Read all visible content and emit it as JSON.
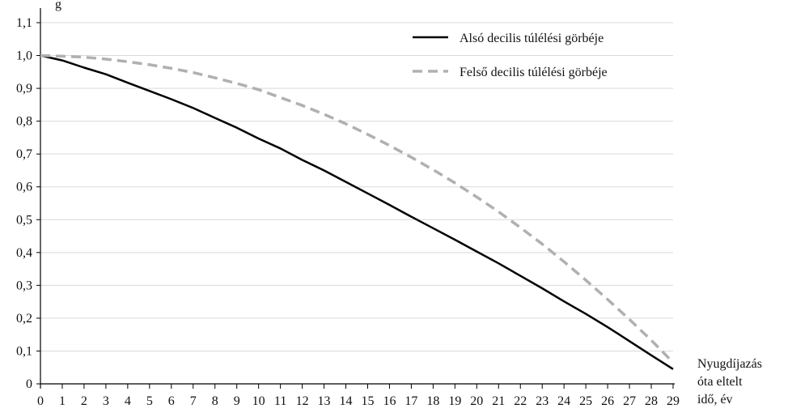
{
  "chart_data": {
    "type": "line",
    "ylabel_fragment": "g",
    "xlabel_lines": [
      "Nyugdíjazás",
      "óta eltelt",
      "idő, év"
    ],
    "ylim": [
      0,
      1.1
    ],
    "yticks": [
      "0",
      "0,1",
      "0,2",
      "0,3",
      "0,4",
      "0,5",
      "0,6",
      "0,7",
      "0,8",
      "0,9",
      "1,0",
      "1,1"
    ],
    "x": [
      0,
      1,
      2,
      3,
      4,
      5,
      6,
      7,
      8,
      9,
      10,
      11,
      12,
      13,
      14,
      15,
      16,
      17,
      18,
      19,
      20,
      21,
      22,
      23,
      24,
      25,
      26,
      27,
      28,
      29
    ],
    "grid": "horizontal",
    "legend_position": "top-right",
    "series": [
      {
        "name": "Alsó decilis túlélési görbéje",
        "color": "#000000",
        "style": "solid",
        "values": [
          1.0,
          0.985,
          0.963,
          0.943,
          0.917,
          0.892,
          0.867,
          0.84,
          0.81,
          0.78,
          0.747,
          0.717,
          0.682,
          0.65,
          0.615,
          0.58,
          0.545,
          0.509,
          0.474,
          0.439,
          0.403,
          0.367,
          0.329,
          0.291,
          0.251,
          0.213,
          0.173,
          0.13,
          0.087,
          0.045
        ]
      },
      {
        "name": "Felső decilis túlélési görbéje",
        "color": "#b0b0b0",
        "style": "dashed",
        "values": [
          1.0,
          0.998,
          0.995,
          0.989,
          0.981,
          0.972,
          0.961,
          0.948,
          0.932,
          0.915,
          0.896,
          0.872,
          0.848,
          0.821,
          0.792,
          0.76,
          0.726,
          0.69,
          0.652,
          0.612,
          0.569,
          0.524,
          0.476,
          0.426,
          0.372,
          0.316,
          0.257,
          0.196,
          0.133,
          0.065
        ]
      }
    ]
  }
}
